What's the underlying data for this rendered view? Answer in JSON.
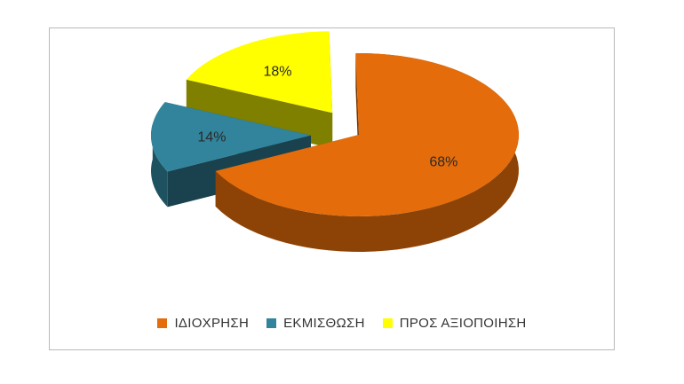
{
  "chart_data": {
    "type": "pie",
    "style": "3d-exploded",
    "slices": [
      {
        "name": "ΙΔΙΟΧΡΗΣΗ",
        "value": 68,
        "label": "68%",
        "color": "#e46c0a"
      },
      {
        "name": "ΕΚΜΙΣΘΩΣΗ",
        "value": 14,
        "label": "14%",
        "color": "#31849b"
      },
      {
        "name": "ΠΡΟΣ ΑΞΙΟΠΟΙΗΣΗ",
        "value": 18,
        "label": "18%",
        "color": "#ffff00"
      }
    ],
    "legend_placement": "bottom"
  }
}
